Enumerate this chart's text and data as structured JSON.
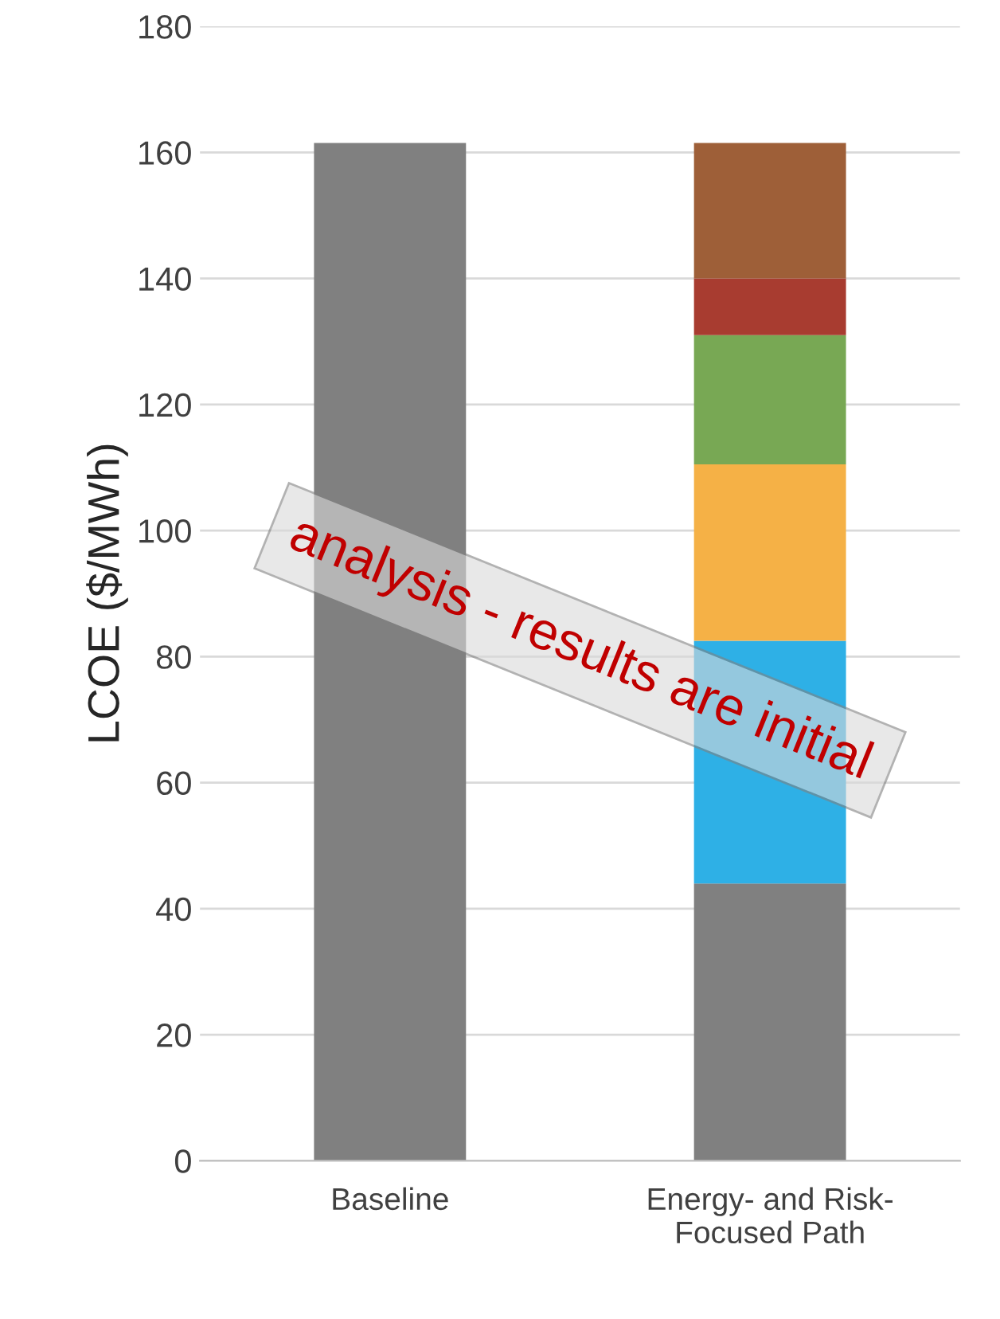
{
  "chart_data": {
    "type": "bar",
    "stacked": true,
    "categories": [
      "Baseline",
      "Energy- and Risk-\nFocused Path"
    ],
    "ylabel": "LCOE ($/MWh)",
    "series": [
      {
        "color": "#808080",
        "values": [
          161.5,
          44
        ]
      },
      {
        "color": "#2eb0e6",
        "values": [
          null,
          38.5
        ]
      },
      {
        "color": "#f5b146",
        "values": [
          null,
          28
        ]
      },
      {
        "color": "#78a854",
        "values": [
          null,
          20.5
        ]
      },
      {
        "color": "#a83c30",
        "values": [
          null,
          9
        ]
      },
      {
        "color": "#9e5f38",
        "values": [
          null,
          21.5
        ]
      }
    ],
    "ylim": [
      0,
      180
    ],
    "yticks": [
      0,
      20,
      40,
      60,
      80,
      100,
      120,
      140,
      160,
      180
    ],
    "grid": "y",
    "annotations": [
      "analysis - results are initial"
    ]
  }
}
